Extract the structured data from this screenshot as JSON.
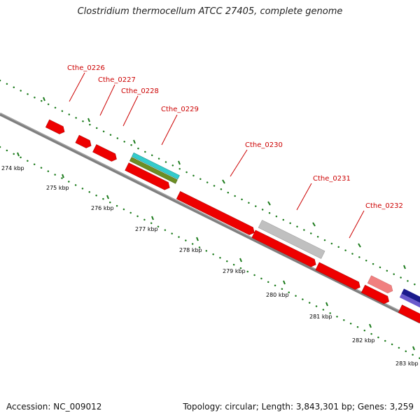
{
  "title": "Clostridium thermocellum ATCC 27405, complete genome",
  "accession": "Accession: NC_009012",
  "summary": "Topology: circular; Length: 3,843,301 bp; Genes: 3,259",
  "kbp_labels": [
    "274 kbp",
    "275 kbp",
    "276 kbp",
    "277 kbp",
    "278 kbp",
    "279 kbp",
    "280 kbp",
    "281 kbp",
    "282 kbp",
    "283 kbp"
  ],
  "gene_labels": [
    "Cthe_0226",
    "Cthe_0227",
    "Cthe_0228",
    "Cthe_0229",
    "Cthe_0230",
    "Cthe_0231",
    "Cthe_0232"
  ],
  "colors": {
    "backbone": "#7f7f7f",
    "tick": "#1a7a1a",
    "gene_forward": "#ee0000",
    "gene_label": "#cc0000",
    "rrna": "#c0c0c0",
    "pink": "#f08080",
    "cyan": "#33cccc",
    "olive": "#6b8e23",
    "navy": "#1a1a8c",
    "violet": "#6a5acd"
  }
}
